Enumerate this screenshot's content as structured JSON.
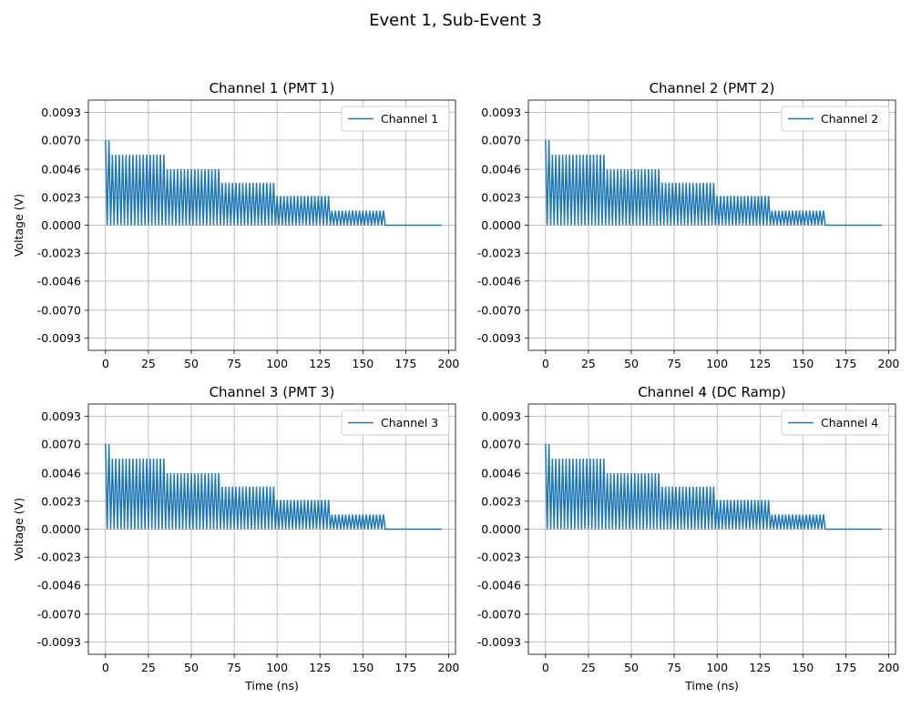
{
  "figure": {
    "title": "Event 1, Sub-Event 3"
  },
  "colors": {
    "series": "#1f77b4",
    "grid": "#b0b0b0",
    "axis": "#000000"
  },
  "chart_data": [
    {
      "type": "line",
      "title": "Channel 1 (PMT 1)",
      "xlabel": "",
      "ylabel": "Voltage (V)",
      "xlim": [
        -10,
        204
      ],
      "ylim": [
        -0.0103,
        0.0103
      ],
      "xticks": [
        0,
        25,
        50,
        75,
        100,
        125,
        150,
        175,
        200
      ],
      "yticks": [
        -0.0093,
        -0.007,
        -0.0046,
        -0.0023,
        0.0,
        0.0023,
        0.0046,
        0.007,
        0.0093
      ],
      "ytick_labels": [
        "-0.0093",
        "-0.0070",
        "-0.0046",
        "-0.0023",
        "0.0000",
        "0.0023",
        "0.0046",
        "0.0070",
        "0.0093"
      ],
      "grid": true,
      "legend": "upper right",
      "series": [
        {
          "name": "Channel 1",
          "waveform": {
            "period_ns": 2,
            "x_start": 0,
            "x_end": 196,
            "pulse_groups": [
              {
                "x_start": 0,
                "x_end": 4,
                "amplitude": 0.007
              },
              {
                "x_start": 4,
                "x_end": 36,
                "amplitude": 0.0058
              },
              {
                "x_start": 36,
                "x_end": 68,
                "amplitude": 0.0046
              },
              {
                "x_start": 68,
                "x_end": 100,
                "amplitude": 0.0035
              },
              {
                "x_start": 100,
                "x_end": 132,
                "amplitude": 0.0024
              },
              {
                "x_start": 132,
                "x_end": 164,
                "amplitude": 0.0012
              }
            ],
            "baseline": 0.0
          }
        }
      ]
    },
    {
      "type": "line",
      "title": "Channel 2 (PMT 2)",
      "xlabel": "",
      "ylabel": "",
      "xlim": [
        -10,
        204
      ],
      "ylim": [
        -0.0103,
        0.0103
      ],
      "xticks": [
        0,
        25,
        50,
        75,
        100,
        125,
        150,
        175,
        200
      ],
      "yticks": [
        -0.0093,
        -0.007,
        -0.0046,
        -0.0023,
        0.0,
        0.0023,
        0.0046,
        0.007,
        0.0093
      ],
      "ytick_labels": [
        "-0.0093",
        "-0.0070",
        "-0.0046",
        "-0.0023",
        "0.0000",
        "0.0023",
        "0.0046",
        "0.0070",
        "0.0093"
      ],
      "grid": true,
      "legend": "upper right",
      "series": [
        {
          "name": "Channel 2",
          "waveform": {
            "period_ns": 2,
            "x_start": 0,
            "x_end": 196,
            "pulse_groups": [
              {
                "x_start": 0,
                "x_end": 4,
                "amplitude": 0.007
              },
              {
                "x_start": 4,
                "x_end": 36,
                "amplitude": 0.0058
              },
              {
                "x_start": 36,
                "x_end": 68,
                "amplitude": 0.0046
              },
              {
                "x_start": 68,
                "x_end": 100,
                "amplitude": 0.0035
              },
              {
                "x_start": 100,
                "x_end": 132,
                "amplitude": 0.0024
              },
              {
                "x_start": 132,
                "x_end": 164,
                "amplitude": 0.0012
              }
            ],
            "baseline": 0.0
          }
        }
      ]
    },
    {
      "type": "line",
      "title": "Channel 3 (PMT 3)",
      "xlabel": "Time (ns)",
      "ylabel": "Voltage (V)",
      "xlim": [
        -10,
        204
      ],
      "ylim": [
        -0.0103,
        0.0103
      ],
      "xticks": [
        0,
        25,
        50,
        75,
        100,
        125,
        150,
        175,
        200
      ],
      "yticks": [
        -0.0093,
        -0.007,
        -0.0046,
        -0.0023,
        0.0,
        0.0023,
        0.0046,
        0.007,
        0.0093
      ],
      "ytick_labels": [
        "-0.0093",
        "-0.0070",
        "-0.0046",
        "-0.0023",
        "0.0000",
        "0.0023",
        "0.0046",
        "0.0070",
        "0.0093"
      ],
      "grid": true,
      "legend": "upper right",
      "series": [
        {
          "name": "Channel 3",
          "waveform": {
            "period_ns": 2,
            "x_start": 0,
            "x_end": 196,
            "pulse_groups": [
              {
                "x_start": 0,
                "x_end": 4,
                "amplitude": 0.007
              },
              {
                "x_start": 4,
                "x_end": 36,
                "amplitude": 0.0058
              },
              {
                "x_start": 36,
                "x_end": 68,
                "amplitude": 0.0046
              },
              {
                "x_start": 68,
                "x_end": 100,
                "amplitude": 0.0035
              },
              {
                "x_start": 100,
                "x_end": 132,
                "amplitude": 0.0024
              },
              {
                "x_start": 132,
                "x_end": 164,
                "amplitude": 0.0012
              }
            ],
            "baseline": 0.0
          }
        }
      ]
    },
    {
      "type": "line",
      "title": "Channel 4 (DC Ramp)",
      "xlabel": "Time (ns)",
      "ylabel": "",
      "xlim": [
        -10,
        204
      ],
      "ylim": [
        -0.0103,
        0.0103
      ],
      "xticks": [
        0,
        25,
        50,
        75,
        100,
        125,
        150,
        175,
        200
      ],
      "yticks": [
        -0.0093,
        -0.007,
        -0.0046,
        -0.0023,
        0.0,
        0.0023,
        0.0046,
        0.007,
        0.0093
      ],
      "ytick_labels": [
        "-0.0093",
        "-0.0070",
        "-0.0046",
        "-0.0023",
        "0.0000",
        "0.0023",
        "0.0046",
        "0.0070",
        "0.0093"
      ],
      "grid": true,
      "legend": "upper right",
      "series": [
        {
          "name": "Channel 4",
          "waveform": {
            "period_ns": 2,
            "x_start": 0,
            "x_end": 196,
            "pulse_groups": [
              {
                "x_start": 0,
                "x_end": 4,
                "amplitude": 0.007
              },
              {
                "x_start": 4,
                "x_end": 36,
                "amplitude": 0.0058
              },
              {
                "x_start": 36,
                "x_end": 68,
                "amplitude": 0.0046
              },
              {
                "x_start": 68,
                "x_end": 100,
                "amplitude": 0.0035
              },
              {
                "x_start": 100,
                "x_end": 132,
                "amplitude": 0.0024
              },
              {
                "x_start": 132,
                "x_end": 164,
                "amplitude": 0.0012
              }
            ],
            "baseline": 0.0
          }
        }
      ]
    }
  ]
}
